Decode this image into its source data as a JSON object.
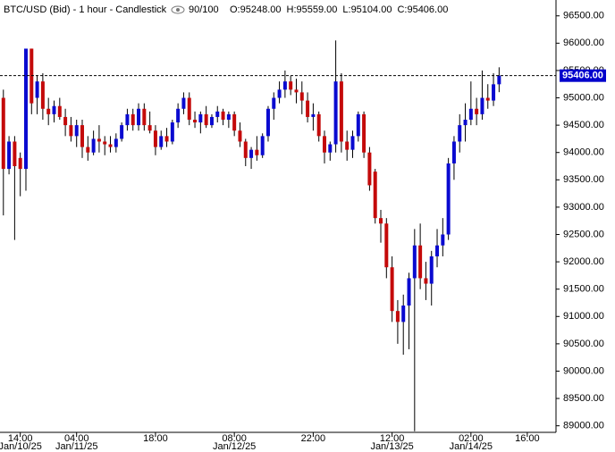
{
  "chart_data": {
    "type": "candlestick",
    "title": "BTC/USD (Bid) - 1 hour - Candlestick",
    "zoom_label": "90/100",
    "header_values": [
      "O:95248.00",
      "H:95559.00",
      "L:95104.00",
      "C:95406.00"
    ],
    "up_color": "#0a0ad0",
    "down_color": "#c40a0a",
    "ohlc": [
      [
        95000,
        95150,
        92850,
        93700
      ],
      [
        93700,
        94300,
        93600,
        94200
      ],
      [
        94200,
        94300,
        92400,
        93750
      ],
      [
        93900,
        94000,
        93200,
        93700
      ],
      [
        93700,
        95900,
        93300,
        95900
      ],
      [
        95900,
        95900,
        94700,
        94900
      ],
      [
        95000,
        95400,
        94700,
        95300
      ],
      [
        95300,
        95450,
        94600,
        94800
      ],
      [
        94800,
        95000,
        94500,
        94700
      ],
      [
        94700,
        94950,
        94550,
        94850
      ],
      [
        94850,
        95000,
        94600,
        94650
      ],
      [
        94650,
        94800,
        94300,
        94500
      ],
      [
        94500,
        94650,
        94200,
        94300
      ],
      [
        94300,
        94600,
        94100,
        94500
      ],
      [
        94500,
        94600,
        93900,
        94100
      ],
      [
        94100,
        94300,
        93850,
        94000
      ],
      [
        94000,
        94400,
        93950,
        94250
      ],
      [
        94250,
        94500,
        94000,
        94200
      ],
      [
        94200,
        94300,
        93950,
        94150
      ],
      [
        94150,
        94300,
        94000,
        94100
      ],
      [
        94100,
        94350,
        94000,
        94250
      ],
      [
        94250,
        94550,
        94200,
        94500
      ],
      [
        94500,
        94800,
        94400,
        94700
      ],
      [
        94700,
        94800,
        94400,
        94500
      ],
      [
        94500,
        94900,
        94400,
        94800
      ],
      [
        94800,
        94900,
        94400,
        94500
      ],
      [
        94500,
        94750,
        94350,
        94400
      ],
      [
        94400,
        94500,
        93950,
        94100
      ],
      [
        94100,
        94400,
        94050,
        94300
      ],
      [
        94300,
        94450,
        94100,
        94200
      ],
      [
        94200,
        94600,
        94150,
        94550
      ],
      [
        94550,
        94900,
        94450,
        94800
      ],
      [
        94800,
        95100,
        94700,
        95000
      ],
      [
        95000,
        95100,
        94500,
        94600
      ],
      [
        94600,
        94750,
        94450,
        94550
      ],
      [
        94550,
        94750,
        94350,
        94700
      ],
      [
        94700,
        94850,
        94450,
        94500
      ],
      [
        94500,
        94700,
        94450,
        94650
      ],
      [
        94650,
        94850,
        94550,
        94750
      ],
      [
        94750,
        94800,
        94500,
        94600
      ],
      [
        94600,
        94750,
        94450,
        94700
      ],
      [
        94700,
        94750,
        94300,
        94400
      ],
      [
        94400,
        94550,
        94100,
        94200
      ],
      [
        94200,
        94250,
        93750,
        93900
      ],
      [
        93900,
        94100,
        93700,
        94050
      ],
      [
        94050,
        94300,
        93850,
        93950
      ],
      [
        93950,
        94350,
        93900,
        94300
      ],
      [
        94300,
        94850,
        94200,
        94800
      ],
      [
        94800,
        95100,
        94600,
        95000
      ],
      [
        95000,
        95300,
        94900,
        95150
      ],
      [
        95150,
        95500,
        95000,
        95300
      ],
      [
        95300,
        95400,
        95050,
        95150
      ],
      [
        95150,
        95350,
        94900,
        95100
      ],
      [
        95100,
        95300,
        94700,
        94950
      ],
      [
        94950,
        95100,
        94550,
        94650
      ],
      [
        94650,
        94900,
        94400,
        94700
      ],
      [
        94700,
        94750,
        94200,
        94300
      ],
      [
        94300,
        94400,
        93800,
        94000
      ],
      [
        94000,
        94200,
        93850,
        94150
      ],
      [
        94150,
        96050,
        94000,
        95300
      ],
      [
        95300,
        95450,
        94000,
        94200
      ],
      [
        94200,
        94400,
        93850,
        94050
      ],
      [
        94050,
        94400,
        93900,
        94300
      ],
      [
        94300,
        94750,
        94200,
        94700
      ],
      [
        94700,
        94750,
        93900,
        94000
      ],
      [
        94000,
        94100,
        93300,
        93400
      ],
      [
        93650,
        93700,
        92700,
        92800
      ],
      [
        92800,
        92950,
        92350,
        92700
      ],
      [
        92700,
        92800,
        91700,
        91900
      ],
      [
        91900,
        92100,
        90900,
        91100
      ],
      [
        91100,
        91300,
        90500,
        90900
      ],
      [
        90900,
        91400,
        90300,
        91200
      ],
      [
        91200,
        91800,
        90400,
        91700
      ],
      [
        91700,
        92600,
        88900,
        92300
      ],
      [
        92300,
        92700,
        91500,
        91700
      ],
      [
        91700,
        92000,
        91300,
        91600
      ],
      [
        91600,
        92200,
        91200,
        92100
      ],
      [
        92100,
        92600,
        91900,
        92300
      ],
      [
        92300,
        92800,
        92100,
        92500
      ],
      [
        92500,
        93900,
        92400,
        93800
      ],
      [
        93800,
        94300,
        93500,
        94200
      ],
      [
        94200,
        94700,
        94000,
        94500
      ],
      [
        94500,
        94900,
        94200,
        94600
      ],
      [
        94600,
        95300,
        94500,
        94800
      ],
      [
        94800,
        95000,
        94500,
        94700
      ],
      [
        94700,
        95500,
        94600,
        95000
      ],
      [
        95000,
        95250,
        94800,
        94950
      ],
      [
        94950,
        95450,
        94850,
        95248
      ],
      [
        95248,
        95559,
        95104,
        95406
      ]
    ],
    "last_price": {
      "value": 95406,
      "label": "95406.00"
    },
    "ylim": [
      88880,
      96790
    ],
    "yticks": [
      {
        "value": 89000,
        "label": "89000.00"
      },
      {
        "value": 89500,
        "label": "89500.00"
      },
      {
        "value": 90000,
        "label": "90000.00"
      },
      {
        "value": 90500,
        "label": "90500.00"
      },
      {
        "value": 91000,
        "label": "91000.00"
      },
      {
        "value": 91500,
        "label": "91500.00"
      },
      {
        "value": 92000,
        "label": "92000.00"
      },
      {
        "value": 92500,
        "label": "92500.00"
      },
      {
        "value": 93000,
        "label": "93000.00"
      },
      {
        "value": 93500,
        "label": "93500.00"
      },
      {
        "value": 94000,
        "label": "94000.00"
      },
      {
        "value": 94500,
        "label": "94500.00"
      },
      {
        "value": 95000,
        "label": "95000.00"
      },
      {
        "value": 95500,
        "label": "95500.00"
      },
      {
        "value": 96000,
        "label": "96000.00"
      },
      {
        "value": 96500,
        "label": "96500.00"
      }
    ],
    "xlim": [
      -0.6,
      98.1
    ],
    "xticks": [
      {
        "value": 3,
        "label": "14:00"
      },
      {
        "value": 13,
        "label": "04:00"
      },
      {
        "value": 27,
        "label": "18:00"
      },
      {
        "value": 41,
        "label": "08:00"
      },
      {
        "value": 55,
        "label": "22:00"
      },
      {
        "value": 69,
        "label": "12:00"
      },
      {
        "value": 83,
        "label": "02:00"
      },
      {
        "value": 93,
        "label": "16:00"
      }
    ],
    "xtick_dates": [
      {
        "value": 3,
        "label": "Jan/10/25"
      },
      {
        "value": 13,
        "label": "Jan/11/25"
      },
      {
        "value": 41,
        "label": "Jan/12/25"
      },
      {
        "value": 69,
        "label": "Jan/13/25"
      },
      {
        "value": 83,
        "label": "Jan/14/25"
      }
    ]
  }
}
